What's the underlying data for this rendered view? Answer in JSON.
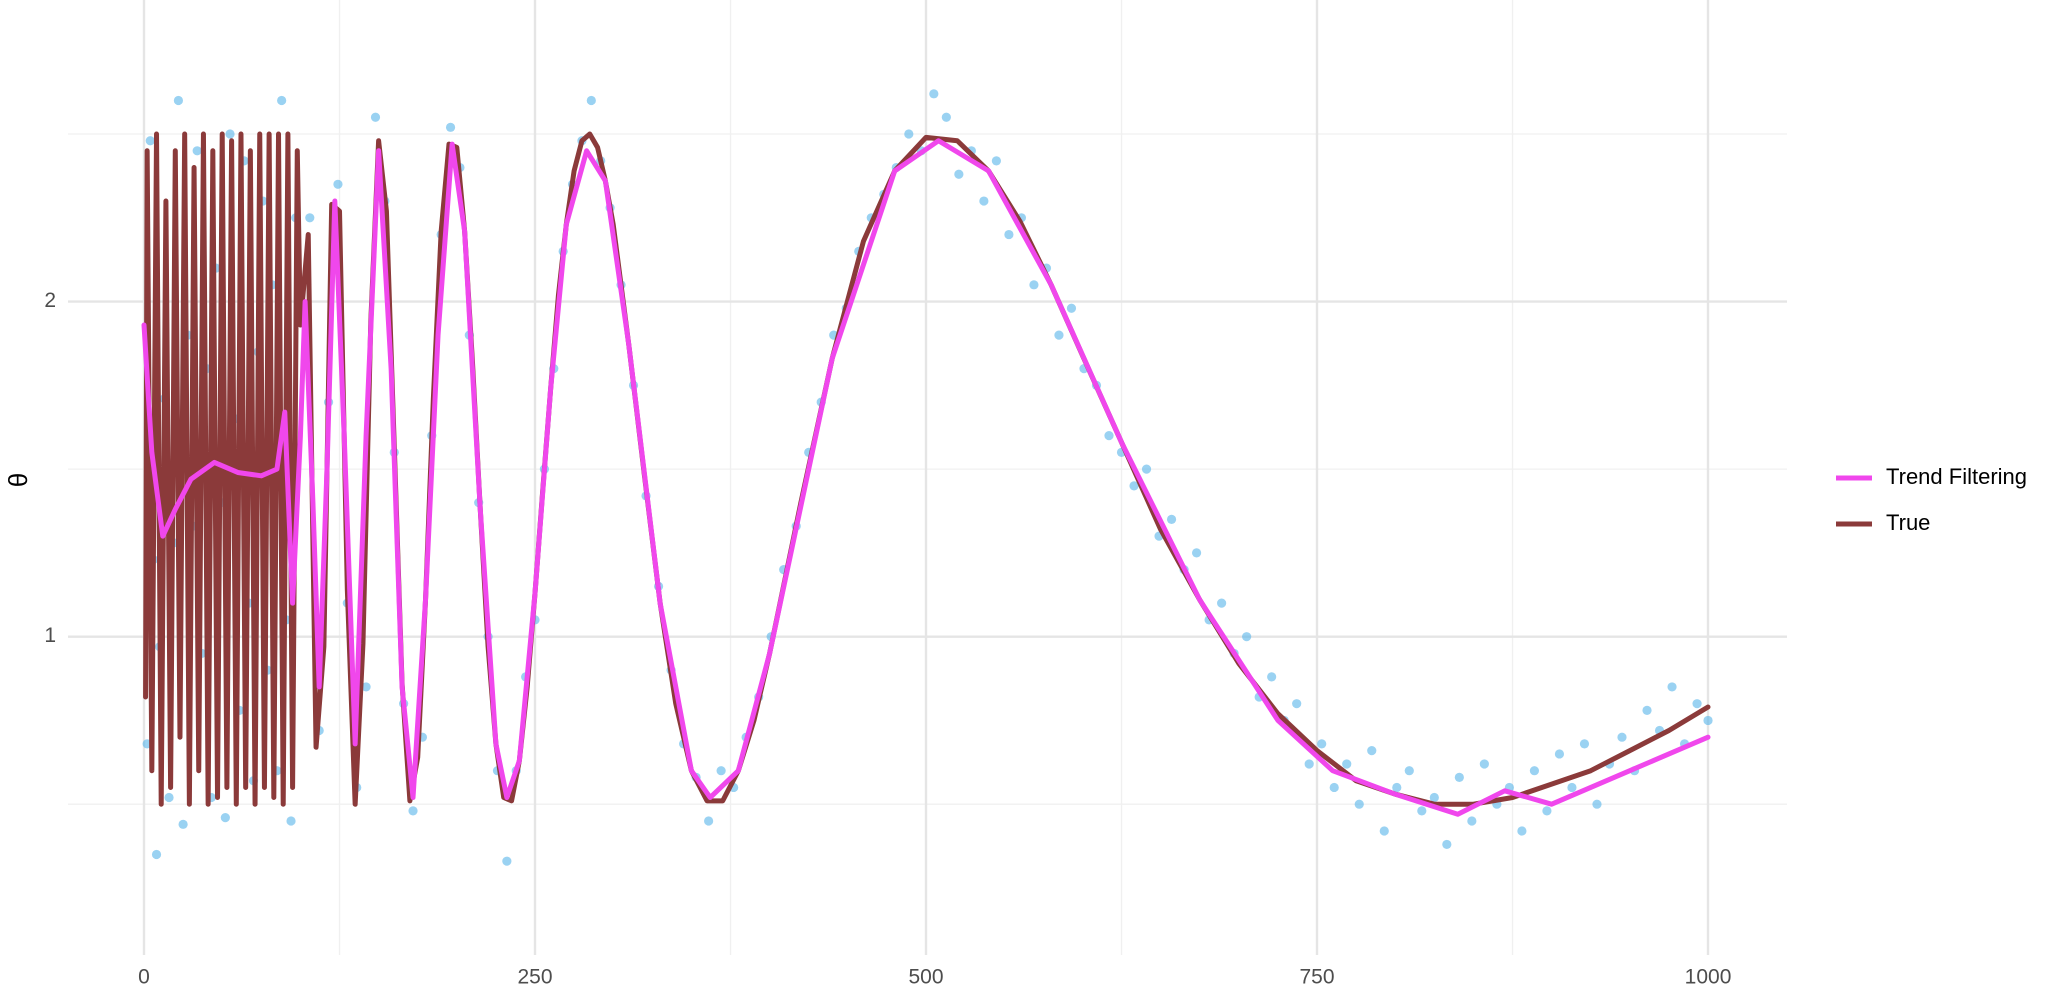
{
  "chart_data": {
    "type": "line",
    "y_label": "θ",
    "xlim": [
      -48.6,
      1050.5
    ],
    "ylim": [
      0.05,
      2.9
    ],
    "xticks": [
      0,
      250,
      500,
      750,
      1000
    ],
    "yticks": [
      1,
      2
    ],
    "grid": true,
    "minor_grid": true,
    "legend": "right",
    "series": [
      {
        "type": "scatter",
        "color": "#56B4E9",
        "x": [
          2,
          4,
          6,
          8,
          10,
          13,
          16,
          19,
          22,
          25,
          28,
          31,
          34,
          37,
          40,
          43,
          46,
          49,
          52,
          55,
          58,
          61,
          64,
          67,
          70,
          73,
          76,
          79,
          82,
          85,
          88,
          91,
          94,
          97,
          100,
          106,
          112,
          118,
          124,
          130,
          136,
          142,
          148,
          154,
          160,
          166,
          172,
          178,
          184,
          190,
          196,
          202,
          208,
          214,
          220,
          226,
          232,
          238,
          244,
          250,
          256,
          262,
          268,
          274,
          280,
          286,
          292,
          298,
          305,
          313,
          321,
          329,
          337,
          345,
          353,
          361,
          369,
          377,
          385,
          393,
          401,
          409,
          417,
          425,
          433,
          441,
          449,
          457,
          465,
          473,
          481,
          489,
          497,
          505,
          513,
          521,
          529,
          537,
          545,
          553,
          561,
          569,
          577,
          585,
          593,
          601,
          609,
          617,
          625,
          633,
          641,
          649,
          657,
          665,
          673,
          681,
          689,
          697,
          705,
          713,
          721,
          729,
          737,
          745,
          753,
          761,
          769,
          777,
          785,
          793,
          801,
          809,
          817,
          825,
          833,
          841,
          849,
          857,
          865,
          873,
          881,
          889,
          897,
          905,
          913,
          921,
          929,
          937,
          945,
          953,
          961,
          969,
          977,
          985,
          993,
          1000
        ],
        "values": [
          0.68,
          2.48,
          1.23,
          0.35,
          0.97,
          1.71,
          0.52,
          1.28,
          2.6,
          0.44,
          1.9,
          1.33,
          2.45,
          0.95,
          1.8,
          0.52,
          2.1,
          1.4,
          0.46,
          2.5,
          1.65,
          0.78,
          2.42,
          1.1,
          0.57,
          1.85,
          2.3,
          0.9,
          2.05,
          0.6,
          2.6,
          1.05,
          0.45,
          2.25,
          1.95,
          2.25,
          0.72,
          1.7,
          2.35,
          1.1,
          0.55,
          0.85,
          2.55,
          2.3,
          1.55,
          0.8,
          0.48,
          0.7,
          1.6,
          2.2,
          2.52,
          2.4,
          1.9,
          1.4,
          1.0,
          0.6,
          0.33,
          0.6,
          0.88,
          1.05,
          1.5,
          1.8,
          2.15,
          2.35,
          2.48,
          2.6,
          2.42,
          2.28,
          2.05,
          1.75,
          1.42,
          1.15,
          0.9,
          0.68,
          0.58,
          0.45,
          0.6,
          0.55,
          0.7,
          0.82,
          1.0,
          1.2,
          1.33,
          1.55,
          1.7,
          1.9,
          1.98,
          2.15,
          2.25,
          2.32,
          2.4,
          2.5,
          2.45,
          2.62,
          2.55,
          2.38,
          2.45,
          2.3,
          2.42,
          2.2,
          2.25,
          2.05,
          2.1,
          1.9,
          1.98,
          1.8,
          1.75,
          1.6,
          1.55,
          1.45,
          1.5,
          1.3,
          1.35,
          1.2,
          1.25,
          1.05,
          1.1,
          0.95,
          1.0,
          0.82,
          0.88,
          0.75,
          0.8,
          0.62,
          0.68,
          0.55,
          0.62,
          0.5,
          0.66,
          0.42,
          0.55,
          0.6,
          0.48,
          0.52,
          0.38,
          0.58,
          0.45,
          0.62,
          0.5,
          0.55,
          0.42,
          0.6,
          0.48,
          0.65,
          0.55,
          0.68,
          0.5,
          0.62,
          0.7,
          0.6,
          0.78,
          0.72,
          0.85,
          0.68,
          0.8,
          0.75
        ]
      },
      {
        "type": "line",
        "name": "Trend Filtering",
        "color": "#F047EC",
        "x": [
          0,
          5,
          12,
          20,
          30,
          45,
          60,
          75,
          85,
          90,
          95,
          100,
          103,
          108,
          112,
          117,
          122,
          128,
          135,
          142,
          150,
          158,
          165,
          172,
          180,
          188,
          197,
          205,
          215,
          225,
          232,
          240,
          250,
          260,
          270,
          283,
          295,
          310,
          330,
          350,
          362,
          380,
          400,
          440,
          480,
          508,
          540,
          580,
          625,
          675,
          725,
          760,
          800,
          840,
          870,
          900,
          950,
          1000
        ],
        "values": [
          1.93,
          1.55,
          1.3,
          1.38,
          1.47,
          1.52,
          1.49,
          1.48,
          1.5,
          1.67,
          1.1,
          1.6,
          2.0,
          1.4,
          0.85,
          1.5,
          2.3,
          1.6,
          0.68,
          1.6,
          2.45,
          1.8,
          0.85,
          0.52,
          1.11,
          1.9,
          2.47,
          2.21,
          1.38,
          0.68,
          0.52,
          0.63,
          1.13,
          1.74,
          2.23,
          2.45,
          2.36,
          1.87,
          1.1,
          0.6,
          0.52,
          0.6,
          0.95,
          1.83,
          2.39,
          2.48,
          2.39,
          2.05,
          1.58,
          1.11,
          0.75,
          0.6,
          0.53,
          0.47,
          0.54,
          0.5,
          0.6,
          0.7
        ]
      },
      {
        "type": "line",
        "name": "True",
        "color": "#8B3A3A",
        "x": [
          1,
          2,
          5,
          8,
          11,
          14,
          17,
          20,
          23,
          26,
          29,
          32,
          35,
          38,
          41,
          44,
          47,
          50,
          53,
          56,
          59,
          62,
          65,
          68,
          71,
          74,
          77,
          80,
          83,
          86,
          89,
          92,
          95,
          98,
          100,
          105,
          110,
          115,
          120,
          125,
          130,
          135,
          140,
          145,
          150,
          155,
          160,
          165,
          170,
          175,
          180,
          185,
          190,
          195,
          200,
          205,
          210,
          215,
          220,
          225,
          230,
          235,
          240,
          245,
          250,
          255,
          260,
          265,
          270,
          275,
          280,
          285,
          290,
          295,
          300,
          310,
          320,
          330,
          340,
          350,
          360,
          370,
          380,
          390,
          400,
          420,
          440,
          460,
          480,
          500,
          520,
          540,
          560,
          580,
          600,
          625,
          650,
          675,
          700,
          725,
          750,
          775,
          800,
          825,
          850,
          875,
          900,
          925,
          950,
          975,
          1000
        ],
        "values": [
          0.82,
          2.45,
          0.6,
          2.5,
          0.5,
          2.3,
          0.55,
          2.45,
          0.7,
          2.5,
          0.5,
          2.4,
          0.6,
          2.5,
          0.5,
          2.45,
          0.52,
          2.5,
          0.55,
          2.48,
          0.5,
          2.5,
          0.55,
          2.45,
          0.5,
          2.5,
          0.55,
          2.5,
          0.52,
          2.5,
          0.5,
          2.5,
          0.55,
          2.45,
          1.93,
          2.2,
          0.67,
          0.97,
          2.29,
          2.27,
          1.14,
          0.5,
          0.98,
          1.94,
          2.48,
          2.27,
          1.57,
          0.86,
          0.51,
          0.64,
          1.11,
          1.71,
          2.21,
          2.47,
          2.46,
          2.21,
          1.82,
          1.38,
          0.97,
          0.68,
          0.52,
          0.51,
          0.63,
          0.85,
          1.13,
          1.44,
          1.74,
          2.02,
          2.23,
          2.39,
          2.48,
          2.5,
          2.46,
          2.36,
          2.23,
          1.87,
          1.48,
          1.1,
          0.8,
          0.6,
          0.51,
          0.51,
          0.6,
          0.75,
          0.95,
          1.4,
          1.83,
          2.18,
          2.39,
          2.49,
          2.48,
          2.39,
          2.24,
          2.05,
          1.84,
          1.58,
          1.32,
          1.11,
          0.92,
          0.77,
          0.66,
          0.57,
          0.53,
          0.5,
          0.5,
          0.52,
          0.56,
          0.6,
          0.66,
          0.72,
          0.79
        ]
      }
    ]
  }
}
